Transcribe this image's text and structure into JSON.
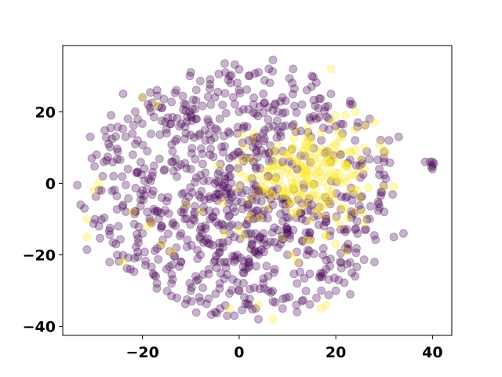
{
  "chart_data": {
    "type": "scatter",
    "title": "",
    "xlabel": "",
    "ylabel": "",
    "xlim": [
      -36.5,
      44
    ],
    "ylim": [
      -42.5,
      38.5
    ],
    "xticks": [
      -20,
      0,
      20,
      40
    ],
    "yticks": [
      -40,
      -20,
      0,
      20
    ],
    "xtick_labels": [
      "−20",
      "0",
      "20",
      "40"
    ],
    "ytick_labels": [
      "−40",
      "−20",
      "0",
      "20"
    ],
    "grid": false,
    "legend": "none",
    "marker_alpha": 0.3,
    "class_colors": {
      "class_0": "#440154",
      "class_1": "#fde725"
    },
    "cloud_center": [
      0,
      -2
    ],
    "cloud_radius": [
      32,
      36
    ],
    "cluster_center": [
      14,
      2
    ],
    "series": [
      {
        "color": "#440154",
        "points": [
          [
            40,
            6
          ],
          [
            40,
            5
          ],
          [
            40,
            4
          ],
          [
            39.5,
            6
          ],
          [
            40.3,
            5.5
          ],
          [
            39.8,
            4.5
          ],
          [
            38.5,
            6
          ],
          [
            -33.5,
            -0.5
          ],
          [
            -32.8,
            -6
          ],
          [
            -32,
            -7
          ],
          [
            -31.5,
            -18.5
          ],
          [
            -30.8,
            13
          ],
          [
            -30.5,
            7
          ],
          [
            -29.5,
            8
          ],
          [
            -29,
            -12
          ],
          [
            -27,
            11
          ],
          [
            -28.5,
            -2
          ],
          [
            -26.5,
            19
          ],
          [
            -25.5,
            -17
          ],
          [
            -24,
            25
          ],
          [
            -23.5,
            13
          ],
          [
            -22.5,
            -24
          ],
          [
            -21.5,
            20
          ],
          [
            -20,
            -14
          ],
          [
            -19,
            9
          ],
          [
            -18,
            22.5
          ],
          [
            -17,
            -28
          ],
          [
            -16,
            17.5
          ],
          [
            -15,
            -5
          ],
          [
            -14,
            -31.5
          ],
          [
            -13,
            26
          ],
          [
            -12,
            -22
          ],
          [
            -10,
            31
          ],
          [
            -9.5,
            -10
          ],
          [
            -8,
            -33
          ],
          [
            -7,
            12
          ],
          [
            -6,
            29
          ],
          [
            -5,
            -36
          ],
          [
            -4,
            -18
          ],
          [
            -3,
            33.5
          ],
          [
            -2,
            4
          ],
          [
            -1,
            -37
          ],
          [
            0,
            20
          ],
          [
            1,
            -25
          ],
          [
            2,
            30
          ],
          [
            3,
            -10
          ],
          [
            4,
            -38
          ],
          [
            5,
            25
          ],
          [
            6,
            -30
          ],
          [
            7,
            34.5
          ],
          [
            8,
            15
          ],
          [
            9,
            -35
          ],
          [
            10,
            -14
          ],
          [
            11,
            28
          ],
          [
            12,
            -28
          ],
          [
            13,
            22
          ],
          [
            14,
            -20
          ],
          [
            15,
            27
          ],
          [
            16,
            -32
          ],
          [
            17,
            12
          ],
          [
            18,
            -24
          ],
          [
            19,
            25
          ],
          [
            20,
            -30
          ],
          [
            21,
            8
          ],
          [
            22,
            -18
          ],
          [
            23,
            23
          ],
          [
            24,
            -26
          ],
          [
            25,
            5
          ],
          [
            26,
            -13
          ],
          [
            27,
            18
          ],
          [
            28,
            -22
          ],
          [
            29,
            4
          ],
          [
            30,
            -8
          ],
          [
            31,
            12
          ],
          [
            32,
            -15
          ],
          [
            33,
            13
          ],
          [
            34,
            -14
          ],
          [
            -0.5,
            -5
          ],
          [
            -2,
            -12
          ],
          [
            3,
            6
          ],
          [
            4,
            -2
          ],
          [
            -5,
            0
          ],
          [
            -8,
            -4
          ],
          [
            -6,
            8
          ],
          [
            2,
            12
          ],
          [
            -3,
            -22
          ],
          [
            6,
            2
          ],
          [
            -10,
            4
          ],
          [
            -12,
            -8
          ],
          [
            -14,
            6
          ],
          [
            -16,
            -12
          ],
          [
            -18,
            2
          ],
          [
            -20,
            -2
          ],
          [
            -22,
            8
          ],
          [
            -24,
            -6
          ],
          [
            -26,
            2
          ],
          [
            -11,
            14
          ],
          [
            -4,
            18
          ],
          [
            1,
            16
          ],
          [
            7,
            -6
          ],
          [
            9,
            6
          ],
          [
            10,
            -20
          ],
          [
            13,
            -10
          ],
          [
            15,
            -6
          ],
          [
            -7,
            -16
          ],
          [
            -9,
            -26
          ],
          [
            -13,
            -18
          ],
          [
            -15,
            -24
          ],
          [
            -19,
            -8
          ],
          [
            -21,
            12
          ],
          [
            -23,
            4
          ],
          [
            -17,
            26
          ],
          [
            -11,
            22
          ],
          [
            -5,
            24
          ],
          [
            0,
            26
          ],
          [
            3,
            22
          ],
          [
            5,
            14
          ],
          [
            8,
            20
          ],
          [
            11,
            16
          ],
          [
            -1,
            8
          ],
          [
            -3,
            0
          ],
          [
            2,
            -6
          ],
          [
            5,
            -14
          ],
          [
            8,
            -18
          ],
          [
            6,
            -26
          ],
          [
            0,
            -30
          ],
          [
            -4,
            -28
          ],
          [
            -8,
            -20
          ],
          [
            -12,
            -14
          ],
          [
            -16,
            -4
          ],
          [
            -6,
            -10
          ],
          [
            12,
            4
          ],
          [
            16,
            18
          ],
          [
            18,
            -10
          ],
          [
            20,
            16
          ],
          [
            22,
            -4
          ],
          [
            24,
            12
          ],
          [
            -28,
            6
          ],
          [
            -25,
            -12
          ],
          [
            -23,
            18
          ],
          [
            -20,
            24
          ],
          [
            -15,
            14
          ],
          [
            -9,
            18
          ],
          [
            -2,
            30
          ],
          [
            4,
            31
          ],
          [
            9,
            24
          ],
          [
            14,
            26
          ],
          [
            -7,
            3
          ],
          [
            -1,
            -15
          ],
          [
            4,
            -20
          ],
          [
            -10,
            -30
          ],
          [
            -14,
            -28
          ],
          [
            2,
            -34
          ],
          [
            7,
            -33
          ],
          [
            12,
            -36
          ],
          [
            17,
            -30
          ],
          [
            23,
            -31
          ],
          [
            27,
            -10
          ],
          [
            30,
            6
          ]
        ]
      },
      {
        "color": "#fde725",
        "points": [
          [
            7,
            5
          ],
          [
            8,
            2
          ],
          [
            9,
            -1
          ],
          [
            10,
            4
          ],
          [
            11,
            0
          ],
          [
            12,
            6
          ],
          [
            13,
            -2
          ],
          [
            14,
            3
          ],
          [
            15,
            7
          ],
          [
            16,
            -1
          ],
          [
            17,
            2
          ],
          [
            18,
            6
          ],
          [
            19,
            -3
          ],
          [
            20,
            3
          ],
          [
            21,
            0
          ],
          [
            22,
            5
          ],
          [
            23,
            -2
          ],
          [
            24,
            2
          ],
          [
            25,
            -4
          ],
          [
            26,
            4
          ],
          [
            8,
            -3
          ],
          [
            10,
            -6
          ],
          [
            12,
            -8
          ],
          [
            14,
            -4
          ],
          [
            16,
            -8
          ],
          [
            18,
            -6
          ],
          [
            20,
            -10
          ],
          [
            22,
            -7
          ],
          [
            9,
            8
          ],
          [
            11,
            10
          ],
          [
            13,
            9
          ],
          [
            15,
            12
          ],
          [
            17,
            14
          ],
          [
            19,
            10
          ],
          [
            21,
            13
          ],
          [
            23,
            9
          ],
          [
            25,
            7
          ],
          [
            20,
            19
          ],
          [
            22,
            19
          ],
          [
            24,
            15
          ],
          [
            26,
            16
          ],
          [
            28,
            17
          ],
          [
            29,
            11
          ],
          [
            30,
            -1
          ],
          [
            32,
            -1
          ],
          [
            24,
            -8
          ],
          [
            26,
            -11
          ],
          [
            18,
            -15
          ],
          [
            20,
            -17
          ],
          [
            22,
            -19
          ],
          [
            14,
            -16
          ],
          [
            12,
            -22
          ],
          [
            17,
            -35
          ],
          [
            18,
            -34
          ],
          [
            24,
            20
          ],
          [
            11,
            -20
          ],
          [
            6,
            -2
          ],
          [
            7,
            9
          ],
          [
            5,
            1
          ],
          [
            -18,
            -11
          ],
          [
            -19,
            -12
          ],
          [
            -20,
            24
          ],
          [
            -17,
            22
          ],
          [
            -29,
            0
          ],
          [
            -30,
            -2
          ],
          [
            -31.5,
            -10
          ],
          [
            -31.5,
            -15
          ],
          [
            -24,
            -22
          ],
          [
            -22,
            -8
          ],
          [
            -16,
            -17
          ],
          [
            -14,
            -19
          ],
          [
            -11,
            -6
          ],
          [
            -8,
            -8
          ],
          [
            -3,
            -14
          ],
          [
            0,
            -13
          ],
          [
            1,
            -15
          ],
          [
            4,
            -34
          ],
          [
            7,
            -38
          ],
          [
            -2,
            -35
          ],
          [
            1,
            10
          ],
          [
            3,
            14
          ],
          [
            19,
            32
          ]
        ]
      }
    ]
  }
}
